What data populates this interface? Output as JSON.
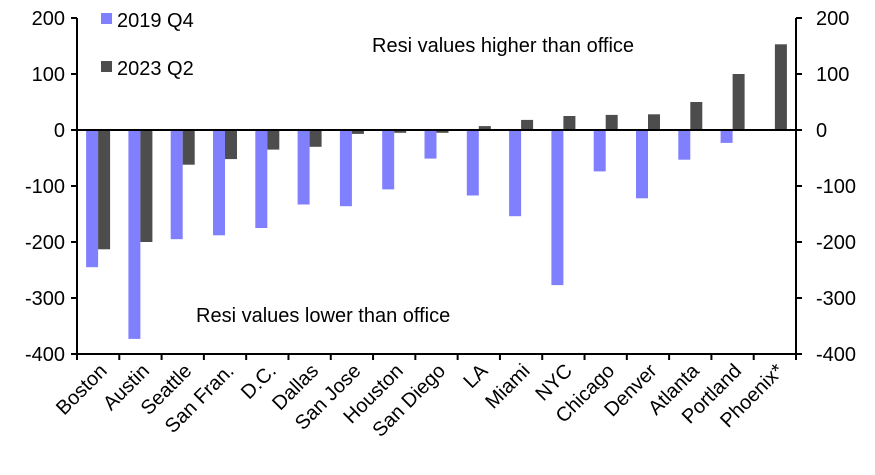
{
  "chart_data": {
    "type": "bar",
    "title": "",
    "xlabel": "",
    "ylabel": "",
    "ylim": [
      -400,
      200
    ],
    "yticks": [
      "200",
      "100",
      "0",
      "-100",
      "-200",
      "-300",
      "-400"
    ],
    "yticks_right": [
      "200",
      "100",
      "0",
      "-100",
      "-200",
      "-300",
      "-400"
    ],
    "categories": [
      "Boston",
      "Austin",
      "Seattle",
      "San Fran.",
      "D.C.",
      "Dallas",
      "San Jose",
      "Houston",
      "San Diego",
      "LA",
      "Miami",
      "NYC",
      "Chicago",
      "Denver",
      "Atlanta",
      "Portland",
      "Phoenix*"
    ],
    "series": [
      {
        "name": "2019 Q4",
        "color": "#8080ff",
        "values": [
          -245,
          -373,
          -195,
          -188,
          -175,
          -133,
          -136,
          -106,
          -51,
          -117,
          -154,
          -277,
          -74,
          -122,
          -53,
          -23,
          0
        ]
      },
      {
        "name": "2023 Q2",
        "color": "#4d4d4d",
        "values": [
          -213,
          -200,
          -62,
          -52,
          -35,
          -30,
          -7,
          -5,
          -5,
          7,
          18,
          25,
          27,
          28,
          50,
          100,
          153
        ]
      }
    ],
    "legend_position": "top-left",
    "grid": false,
    "annotations": [
      "Resi values higher than office",
      "Resi values lower than office"
    ]
  }
}
